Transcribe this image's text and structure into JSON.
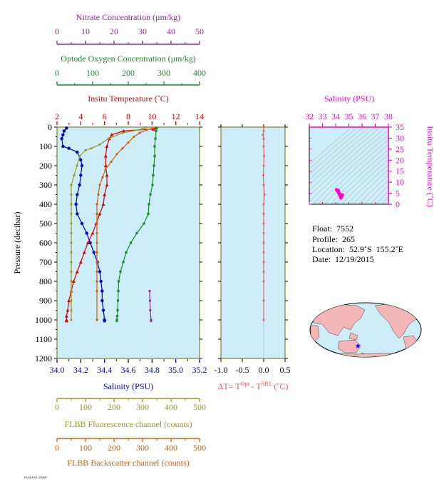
{
  "chart_data": [
    {
      "type": "line",
      "ylabel": "Pressure (decibar)",
      "yticks": [
        "0",
        "100",
        "200",
        "300",
        "400",
        "500",
        "600",
        "700",
        "800",
        "900",
        "1000",
        "1100",
        "1200"
      ],
      "ylim": [
        1200,
        0
      ],
      "axes": {
        "nitrate": {
          "label": "Nitrate Concentration (μm/kg)",
          "ticks": [
            "0",
            "10",
            "20",
            "30",
            "40",
            "50"
          ],
          "lim": [
            0,
            50
          ],
          "color": "#8b2a8b"
        },
        "oxygen": {
          "label": "Optode Oxygen Concentration (μm/kg)",
          "ticks": [
            "0",
            "100",
            "200",
            "300",
            "400"
          ],
          "lim": [
            0,
            400
          ],
          "color": "#1a8a2a"
        },
        "temperature": {
          "label": "Insitu Temperature (˚C)",
          "ticks": [
            "2",
            "4",
            "6",
            "8",
            "10",
            "12",
            "14"
          ],
          "lim": [
            2,
            14
          ],
          "color": "#dd0000"
        },
        "salinity": {
          "label": "Salinity (PSU)",
          "ticks": [
            "34.0",
            "34.2",
            "34.4",
            "34.6",
            "34.8",
            "35.0",
            "35.2"
          ],
          "lim": [
            34.0,
            35.2
          ],
          "color": "#0000cc"
        },
        "fluorescence": {
          "label": "FLBB Fluorescence channel (counts)",
          "ticks": [
            "0",
            "100",
            "200",
            "300",
            "400",
            "500"
          ],
          "lim": [
            0,
            500
          ],
          "color": "#999922"
        },
        "backscatter": {
          "label": "FLBB Backscatter channel (counts)",
          "ticks": [
            "0",
            "100",
            "200",
            "300",
            "400",
            "500"
          ],
          "lim": [
            0,
            500
          ],
          "color": "#d06010"
        }
      },
      "series": [
        {
          "axis": "temperature",
          "color": "#dd0000",
          "x": [
            10.3,
            10.1,
            7.6,
            6.6,
            6.4,
            6.2,
            6.1,
            6.1,
            6.2,
            6.2,
            6.0,
            5.9,
            5.6,
            5.3,
            5.0,
            4.6,
            4.3,
            4.0,
            3.7,
            3.4,
            3.2,
            3.0,
            2.9,
            2.8,
            2.8,
            2.8
          ],
          "y": [
            5,
            10,
            20,
            40,
            60,
            100,
            150,
            200,
            250,
            300,
            350,
            400,
            450,
            500,
            550,
            600,
            650,
            700,
            750,
            800,
            850,
            900,
            950,
            980,
            1000,
            1005
          ]
        },
        {
          "axis": "salinity",
          "color": "#0000cc",
          "x": [
            34.08,
            34.06,
            34.05,
            34.04,
            34.05,
            34.1,
            34.17,
            34.2,
            34.21,
            34.2,
            34.19,
            34.17,
            34.16,
            34.17,
            34.21,
            34.25,
            34.28,
            34.31,
            34.34,
            34.36,
            34.37,
            34.38,
            34.38,
            34.39,
            34.4,
            34.4
          ],
          "y": [
            5,
            20,
            40,
            60,
            100,
            110,
            130,
            170,
            200,
            250,
            300,
            350,
            400,
            450,
            500,
            550,
            600,
            650,
            700,
            750,
            800,
            850,
            900,
            950,
            1000,
            1005
          ]
        },
        {
          "axis": "oxygen",
          "color": "#1a8a2a",
          "x": [
            280,
            278,
            276,
            274,
            274,
            272,
            270,
            268,
            262,
            258,
            256,
            244,
            224,
            207,
            194,
            186,
            178,
            173,
            172,
            171,
            170,
            169,
            168,
            168,
            168
          ],
          "y": [
            5,
            20,
            60,
            100,
            150,
            200,
            250,
            300,
            350,
            400,
            450,
            500,
            550,
            600,
            650,
            700,
            750,
            800,
            850,
            900,
            950,
            980,
            1000,
            1003,
            1005
          ]
        },
        {
          "axis": "nitrate",
          "color": "#8b2a8b",
          "x": [
            32.5,
            32.6,
            32.7,
            33.0,
            33.0
          ],
          "y": [
            850,
            900,
            950,
            1000,
            1005
          ]
        },
        {
          "axis": "fluorescence",
          "color": "#999922",
          "x": [
            310,
            300,
            230,
            180,
            150,
            120,
            100,
            80,
            70,
            60,
            50,
            50,
            50,
            50,
            50,
            50,
            50,
            50,
            50,
            50,
            50,
            50,
            50,
            50,
            50
          ],
          "y": [
            2,
            10,
            30,
            60,
            90,
            110,
            120,
            150,
            200,
            250,
            300,
            350,
            400,
            450,
            500,
            550,
            600,
            650,
            700,
            750,
            800,
            850,
            900,
            950,
            1000
          ]
        },
        {
          "axis": "backscatter",
          "color": "#d06010",
          "x": [
            335,
            315,
            290,
            270,
            250,
            230,
            210,
            190,
            170,
            160,
            150,
            145,
            140,
            140,
            140,
            140,
            140,
            140,
            140,
            140,
            140,
            140,
            140
          ],
          "y": [
            5,
            15,
            30,
            50,
            80,
            110,
            140,
            180,
            220,
            260,
            300,
            350,
            400,
            450,
            500,
            550,
            600,
            650,
            700,
            750,
            800,
            850,
            1000
          ]
        }
      ]
    },
    {
      "type": "line",
      "xlabel": "ΔT= T",
      "xlabel_sup1": "Opt",
      "xlabel_mid": " - T",
      "xlabel_sup2": "SBE",
      "xlabel_unit": " (˚C)",
      "xticks": [
        "-1.0",
        "-0.5",
        "0.0",
        "0.5"
      ],
      "xlim": [
        -1.0,
        0.5
      ],
      "ylim": [
        1200,
        0
      ],
      "series": [
        {
          "color": "#ee6666",
          "x": [
            0.0,
            0.0,
            -0.02,
            0.0,
            0.0,
            0.01,
            0.0,
            -0.01,
            0.0,
            0.02,
            0.0,
            0.0,
            0.0,
            0.0,
            0.0,
            0.0,
            0.0,
            0.0,
            0.0,
            0.0,
            0.0
          ],
          "y": [
            0,
            20,
            40,
            60,
            100,
            150,
            200,
            250,
            300,
            350,
            400,
            450,
            500,
            550,
            600,
            650,
            700,
            750,
            800,
            900,
            1000
          ]
        }
      ]
    },
    {
      "type": "scatter",
      "title": "Salinity (PSU)",
      "xticks": [
        "32",
        "33",
        "34",
        "35",
        "36",
        "37",
        "38"
      ],
      "xlim": [
        32,
        38
      ],
      "ylabel": "Insitu Temperature (˚C)",
      "yticks": [
        "0",
        "5",
        "10",
        "15",
        "20",
        "25",
        "30",
        "35"
      ],
      "ylim": [
        0,
        35
      ],
      "color": "#ff00cc",
      "points": [
        [
          34.08,
          6.5
        ],
        [
          34.15,
          6.2
        ],
        [
          34.2,
          6.0
        ],
        [
          34.22,
          5.5
        ],
        [
          34.25,
          5.0
        ],
        [
          34.3,
          4.5
        ],
        [
          34.35,
          4.0
        ],
        [
          34.38,
          3.5
        ],
        [
          34.4,
          3.2
        ],
        [
          34.4,
          3.0
        ],
        [
          34.45,
          3.8
        ],
        [
          34.5,
          4.2
        ]
      ]
    }
  ],
  "info": {
    "float": "Float:  7552",
    "profile": "Profile:  265",
    "location": "Location:  52.9˚S  155.2˚E",
    "date": "Date:  12/19/2015"
  },
  "map": {
    "marker_lon": 155.2,
    "marker_lat": -52.9,
    "marker_color": "#0000ff"
  },
  "footer": "FLOATVIZ_SNAP"
}
